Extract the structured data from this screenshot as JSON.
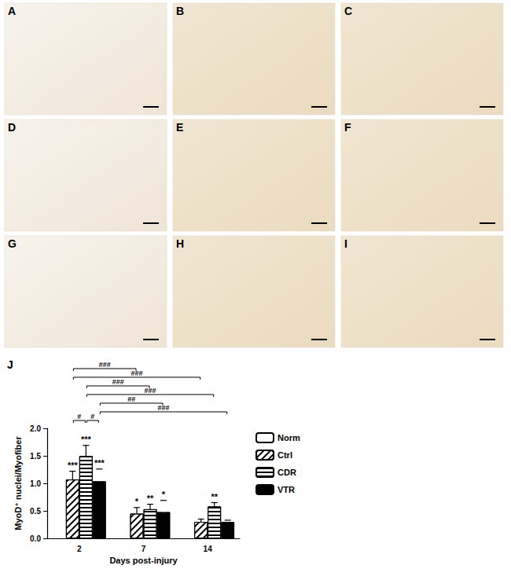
{
  "chart_data": {
    "type": "bar",
    "title": "J",
    "x_label": "Days post-injury",
    "y_label": "MyoD⁺ nuclei/Myofiber",
    "categories": [
      "2",
      "7",
      "14"
    ],
    "series": [
      {
        "name": "Norm",
        "color": "#ffffff",
        "values": [
          null,
          null,
          null
        ],
        "errors": [
          null,
          null,
          null
        ],
        "annotations": [
          null,
          null,
          null
        ]
      },
      {
        "name": "Ctrl",
        "color": "#ffffff",
        "values": [
          1.07,
          0.45,
          0.3
        ],
        "errors": [
          0.15,
          0.11,
          0.05
        ],
        "annotations": [
          "***",
          "*",
          null
        ]
      },
      {
        "name": "CDR",
        "color": "#ffffff",
        "values": [
          1.5,
          0.53,
          0.58
        ],
        "errors": [
          0.19,
          0.09,
          0.07
        ],
        "annotations": [
          "***",
          "**",
          "**"
        ]
      },
      {
        "name": "VTR",
        "color": "#000000",
        "values": [
          1.04,
          0.48,
          0.3
        ],
        "errors": [
          0.22,
          0.21,
          0.03
        ],
        "annotations": [
          "***",
          "*",
          null
        ]
      }
    ],
    "comparisons": [
      {
        "from": [
          "2",
          "Ctrl"
        ],
        "to": [
          "7",
          "Ctrl"
        ],
        "label": "###"
      },
      {
        "from": [
          "2",
          "Ctrl"
        ],
        "to": [
          "14",
          "Ctrl"
        ],
        "label": "###"
      },
      {
        "from": [
          "2",
          "CDR"
        ],
        "to": [
          "7",
          "CDR"
        ],
        "label": "###"
      },
      {
        "from": [
          "2",
          "CDR"
        ],
        "to": [
          "14",
          "CDR"
        ],
        "label": "###"
      },
      {
        "from": [
          "2",
          "VTR"
        ],
        "to": [
          "7",
          "VTR"
        ],
        "label": "##"
      },
      {
        "from": [
          "2",
          "VTR"
        ],
        "to": [
          "14",
          "VTR"
        ],
        "label": "###"
      },
      {
        "from": [
          "2",
          "Ctrl"
        ],
        "to": [
          "2",
          "CDR"
        ],
        "label": "#"
      },
      {
        "from": [
          "2",
          "CDR"
        ],
        "to": [
          "2",
          "VTR"
        ],
        "label": "#"
      }
    ],
    "ylim": [
      0,
      2
    ],
    "yticks": [
      {
        "value": 0,
        "label": "0.0"
      },
      0.5,
      {
        "value": 1,
        "label": "1.0"
      },
      1.5,
      {
        "value": 2,
        "label": "2.0"
      }
    ],
    "grid": false,
    "legend": "right"
  },
  "panels": [
    "A",
    "B",
    "C",
    "D",
    "E",
    "F",
    "G",
    "H",
    "I"
  ]
}
